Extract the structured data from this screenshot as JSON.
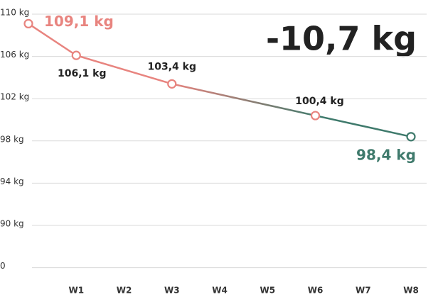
{
  "chart_data": {
    "type": "line",
    "annotation": "-10,7 kg",
    "x": [
      0,
      1,
      3,
      6,
      8
    ],
    "values": [
      109.1,
      106.1,
      103.4,
      100.4,
      98.4
    ],
    "value_labels": [
      "109,1 kg",
      "106,1 kg",
      "103,4 kg",
      "100,4 kg",
      "98,4 kg"
    ],
    "xlim": [
      0,
      8
    ],
    "xticks": [
      {
        "value": 1,
        "label": "W1"
      },
      {
        "value": 2,
        "label": "W2"
      },
      {
        "value": 3,
        "label": "W3"
      },
      {
        "value": 4,
        "label": "W4"
      },
      {
        "value": 5,
        "label": "W5"
      },
      {
        "value": 6,
        "label": "W6"
      },
      {
        "value": 7,
        "label": "W7"
      },
      {
        "value": 8,
        "label": "W8"
      }
    ],
    "ylim": [
      86,
      110
    ],
    "yticks": [
      {
        "value": 110,
        "label": "110 kg"
      },
      {
        "value": 106,
        "label": "106 kg"
      },
      {
        "value": 102,
        "label": "102 kg"
      },
      {
        "value": 98,
        "label": "98 kg"
      },
      {
        "value": 94,
        "label": "94 kg"
      },
      {
        "value": 90,
        "label": "90 kg"
      }
    ],
    "ybreak_label": "0",
    "start_color": "#e8847f",
    "end_color": "#3f7a6c",
    "grid": true
  }
}
